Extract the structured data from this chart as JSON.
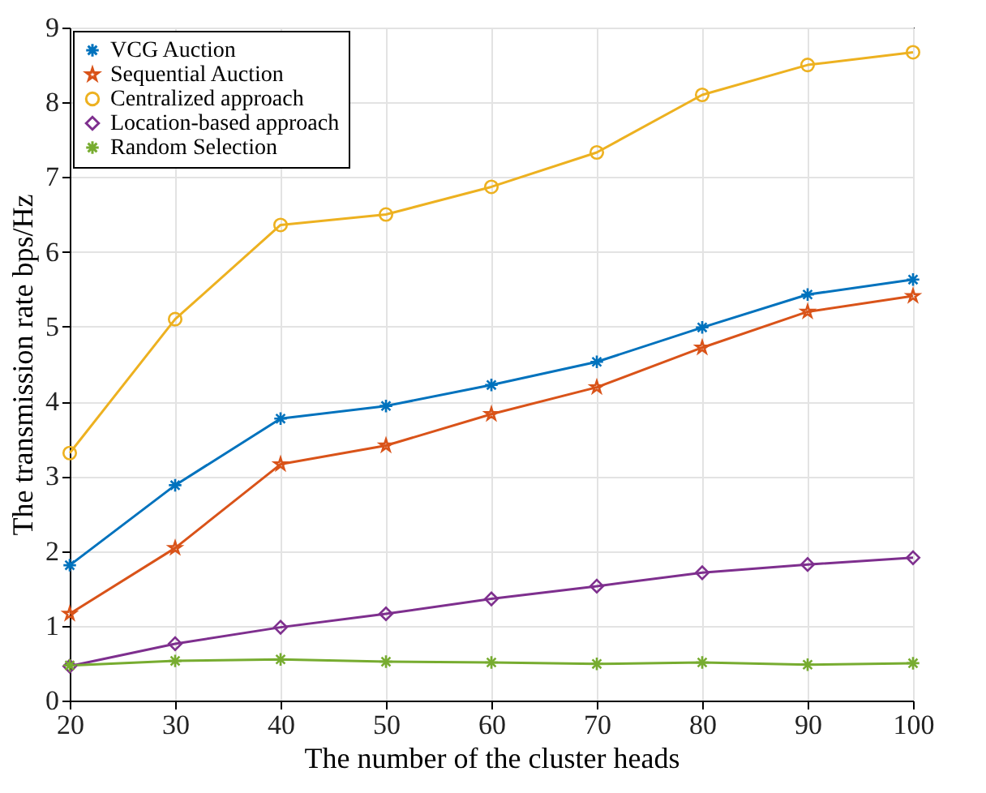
{
  "chart_data": {
    "type": "line",
    "xlabel": "The number of the cluster heads",
    "ylabel": "The transmission rate bps/Hz",
    "x": [
      20,
      30,
      40,
      50,
      60,
      70,
      80,
      90,
      100
    ],
    "xlim": [
      20,
      100
    ],
    "xticks": [
      20,
      30,
      40,
      50,
      60,
      70,
      80,
      90,
      100
    ],
    "ylim": [
      0,
      9
    ],
    "yticks": [
      0,
      1,
      2,
      3,
      4,
      5,
      6,
      7,
      8,
      9
    ],
    "grid": true,
    "legend": "top left",
    "line_style": "solid",
    "series": [
      {
        "name": "VCG Auction",
        "color": "#0072bd",
        "marker": "cross",
        "values": [
          1.81,
          2.88,
          3.77,
          3.94,
          4.22,
          4.53,
          4.99,
          5.43,
          5.63
        ]
      },
      {
        "name": "Sequential Auction",
        "color": "#d95319",
        "marker": "star",
        "values": [
          1.16,
          2.04,
          3.16,
          3.41,
          3.83,
          4.19,
          4.72,
          5.2,
          5.41
        ]
      },
      {
        "name": "Centralized approach",
        "color": "#edb120",
        "marker": "circle",
        "values": [
          3.31,
          5.1,
          6.36,
          6.5,
          6.87,
          7.33,
          8.1,
          8.5,
          8.67
        ]
      },
      {
        "name": "Location-based approach",
        "color": "#7e2f8e",
        "marker": "diamond",
        "values": [
          0.46,
          0.76,
          0.98,
          1.16,
          1.36,
          1.53,
          1.71,
          1.82,
          1.91
        ]
      },
      {
        "name": "Random Selection",
        "color": "#77ac30",
        "marker": "cross",
        "values": [
          0.47,
          0.53,
          0.55,
          0.52,
          0.51,
          0.49,
          0.51,
          0.48,
          0.5
        ]
      }
    ]
  }
}
